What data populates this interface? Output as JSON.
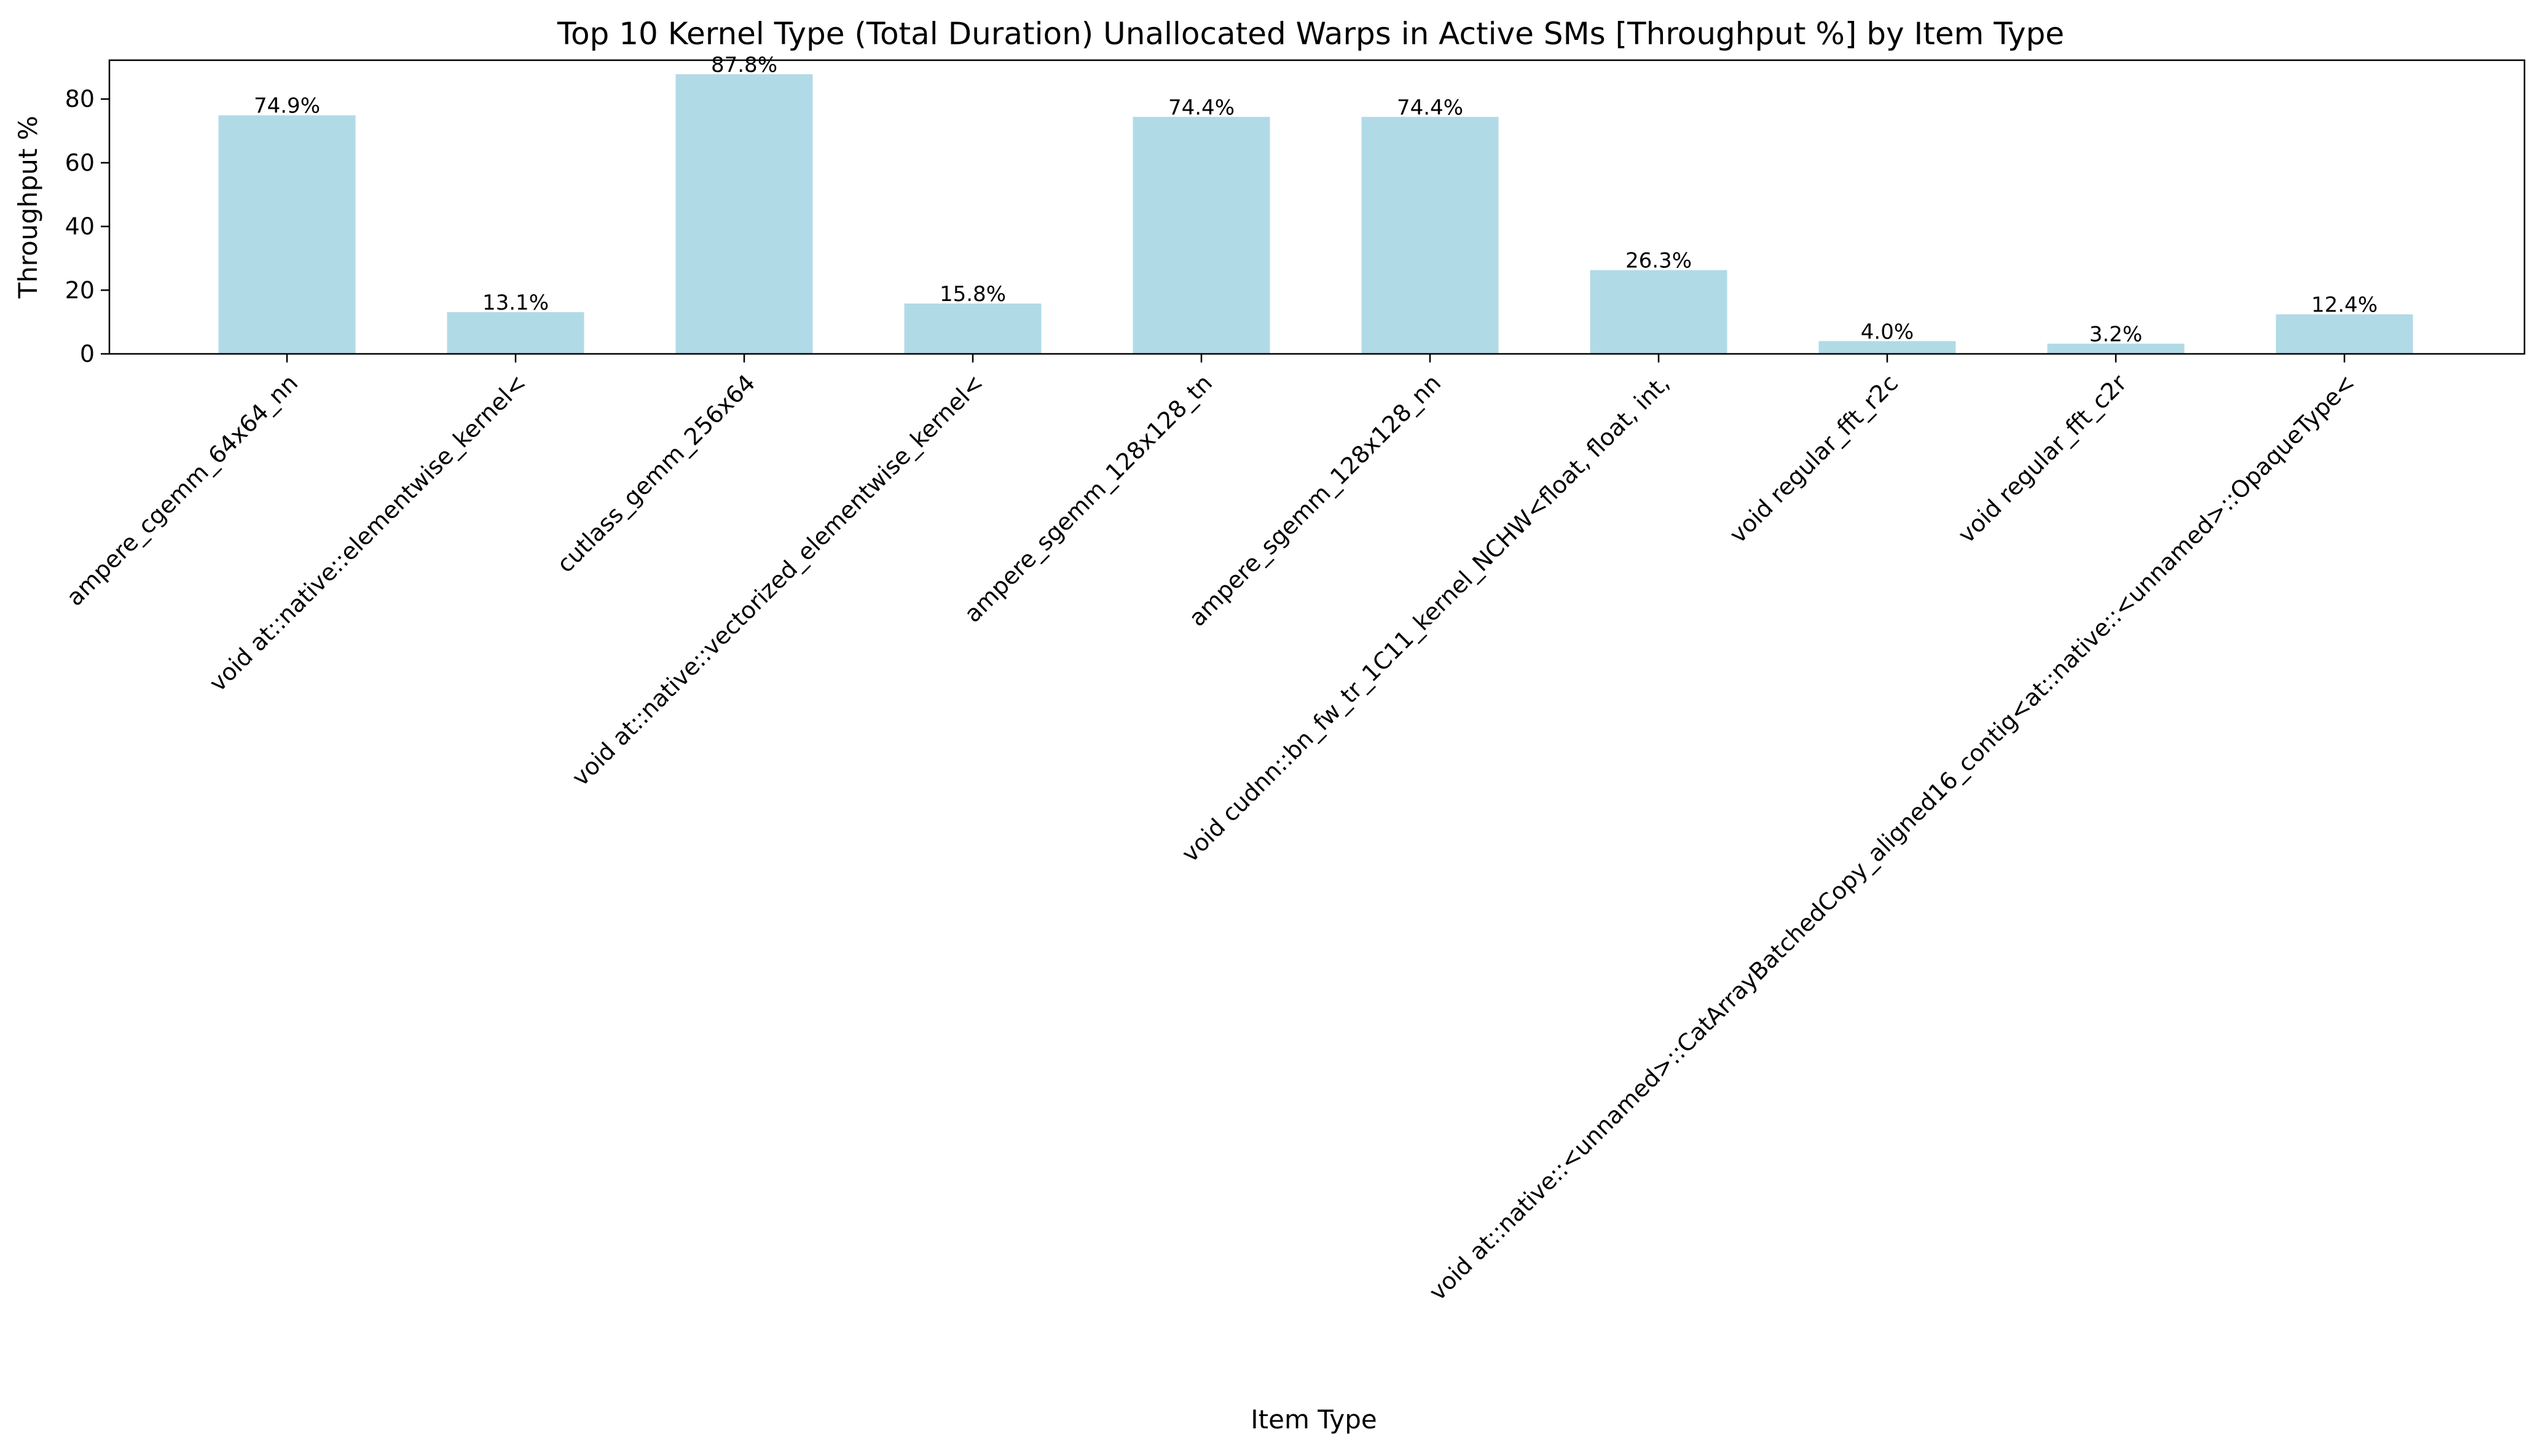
{
  "chart_data": {
    "type": "bar",
    "title": "Top 10 Kernel Type (Total Duration) Unallocated Warps in Active SMs [Throughput %] by Item Type",
    "xlabel": "Item Type",
    "ylabel": "Throughput %",
    "ylim": [
      0,
      92.2
    ],
    "yticks": [
      0,
      20,
      40,
      60,
      80
    ],
    "grid": false,
    "legend": "none",
    "bar_color": "#ADD8E6",
    "categories": [
      "ampere_cgemm_64x64_nn",
      "void at::native::elementwise_kernel<",
      "cutlass_gemm_256x64",
      "void at::native::vectorized_elementwise_kernel<",
      "ampere_sgemm_128x128_tn",
      "ampere_sgemm_128x128_nn",
      "void cudnn::bn_fw_tr_1C11_kernel_NCHW<float, float, int,",
      "void regular_fft_r2c",
      "void regular_fft_c2r",
      "void at::native::<unnamed>::CatArrayBatchedCopy_aligned16_contig<at::native::<unnamed>::OpaqueType<"
    ],
    "values": [
      74.9,
      13.1,
      87.8,
      15.8,
      74.4,
      74.4,
      26.3,
      4.0,
      3.2,
      12.4
    ],
    "data_labels": [
      "74.9%",
      "13.1%",
      "87.8%",
      "15.8%",
      "74.4%",
      "74.4%",
      "26.3%",
      "4.0%",
      "3.2%",
      "12.4%"
    ]
  }
}
